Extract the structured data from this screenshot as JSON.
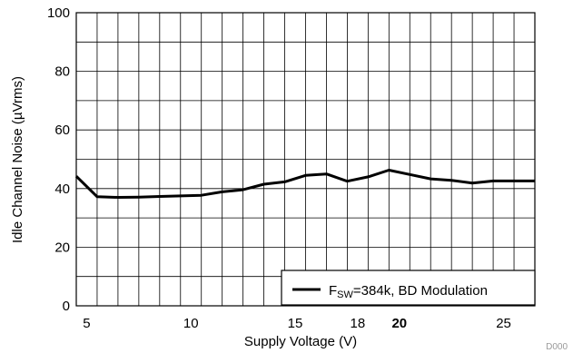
{
  "chart_data": {
    "type": "line",
    "xlabel": "Supply Voltage (V)",
    "ylabel": "Idle Channel Noise (µVrms)",
    "xlim": [
      4.5,
      26.5
    ],
    "ylim": [
      0,
      100
    ],
    "x_ticks": [
      {
        "value": 5,
        "label": "5",
        "bold": false
      },
      {
        "value": 10,
        "label": "10",
        "bold": false
      },
      {
        "value": 15,
        "label": "15",
        "bold": false
      },
      {
        "value": 18,
        "label": "18",
        "bold": false
      },
      {
        "value": 20,
        "label": "20",
        "bold": true
      },
      {
        "value": 25,
        "label": "25",
        "bold": false
      }
    ],
    "y_ticks": [
      0,
      20,
      40,
      60,
      80,
      100
    ],
    "grid": true,
    "legend_position": "bottom-right",
    "series": [
      {
        "name_main": "F",
        "name_sub": "SW",
        "name_rest": "=384k, BD Modulation",
        "color": "#000000",
        "x": [
          4.5,
          5.5,
          6.5,
          7.5,
          8.5,
          9.5,
          10.5,
          11.5,
          12.5,
          13.5,
          14.5,
          15.5,
          16.5,
          17.5,
          18.5,
          19.5,
          20.5,
          21.5,
          22.5,
          23.5,
          24.5,
          25.5,
          26.5
        ],
        "y": [
          44.2,
          37.2,
          37.0,
          37.1,
          37.3,
          37.5,
          37.7,
          38.9,
          39.6,
          41.5,
          42.3,
          44.5,
          45.0,
          42.5,
          44.0,
          46.3,
          44.8,
          43.3,
          42.8,
          41.9,
          42.6,
          42.6,
          42.6
        ]
      }
    ],
    "footer_code": "D000"
  }
}
